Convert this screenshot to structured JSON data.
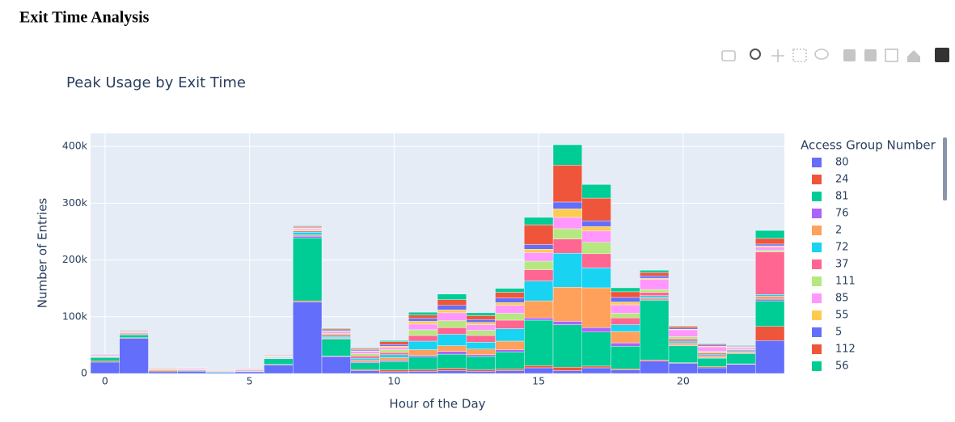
{
  "page": {
    "heading": "Exit Time Analysis"
  },
  "chart_data": {
    "type": "histogram",
    "title": "Peak Usage by Exit Time",
    "x_label": "Hour of the Day",
    "y_label": "Number of Entries",
    "legend_title": "Access Group Number",
    "barmode": "stack",
    "grid": true,
    "bins": [
      -0.5,
      0.5,
      1.5,
      2.5,
      3.5,
      4.5,
      5.5,
      6.5,
      7.5,
      8.5,
      9.5,
      10.5,
      11.5,
      12.5,
      13.5,
      14.5,
      15.5,
      16.5,
      17.5,
      18.5,
      19.5,
      20.5,
      21.5,
      22.5,
      23.5
    ],
    "xlim": [
      -0.5,
      23.5
    ],
    "xticks": [
      0,
      5,
      10,
      15,
      20
    ],
    "ylim": [
      0,
      423000
    ],
    "yticks": [
      0,
      {
        "value": 100000,
        "label": "100k"
      },
      {
        "value": 200000,
        "label": "200k"
      },
      {
        "value": 300000,
        "label": "300k"
      },
      {
        "value": 400000,
        "label": "400k"
      }
    ],
    "series": [
      {
        "name": "80",
        "color": "#636efa",
        "values": [
          20000,
          62000,
          3000,
          4000,
          2000,
          3000,
          15000,
          126000,
          30000,
          5000,
          3000,
          4000,
          5000,
          4000,
          5000,
          10000,
          5000,
          10000,
          6000,
          22000,
          18000,
          10000,
          16000,
          58000
        ]
      },
      {
        "name": "24",
        "color": "#ef553b",
        "values": [
          2000,
          1000,
          2000,
          1000,
          0,
          1000,
          1000,
          2000,
          1000,
          2000,
          3000,
          3000,
          4000,
          3000,
          3000,
          4000,
          6000,
          3000,
          2000,
          2000,
          1000,
          2000,
          1000,
          25000
        ]
      },
      {
        "name": "81",
        "color": "#00cc96",
        "values": [
          6000,
          5000,
          1000,
          1000,
          1000,
          1000,
          10000,
          111000,
          30000,
          12000,
          15000,
          22000,
          25000,
          23000,
          30000,
          80000,
          75000,
          60000,
          40000,
          105000,
          30000,
          15000,
          18000,
          45000
        ]
      },
      {
        "name": "76",
        "color": "#ab63fa",
        "values": [
          1000,
          1000,
          0,
          1000,
          0,
          1000,
          1000,
          3000,
          1000,
          2000,
          2000,
          3000,
          5000,
          3000,
          4000,
          4000,
          6000,
          8000,
          6000,
          2000,
          1000,
          1000,
          1000,
          3000
        ]
      },
      {
        "name": "2",
        "color": "#ffa15a",
        "values": [
          0,
          0,
          1000,
          1000,
          0,
          1000,
          0,
          2000,
          1000,
          3000,
          5000,
          10000,
          10000,
          10000,
          15000,
          30000,
          60000,
          70000,
          20000,
          3000,
          4000,
          3000,
          2000,
          5000
        ]
      },
      {
        "name": "72",
        "color": "#19d3f3",
        "values": [
          0,
          0,
          0,
          0,
          0,
          0,
          1000,
          5000,
          2000,
          3000,
          5000,
          15000,
          20000,
          12000,
          22000,
          35000,
          60000,
          35000,
          12000,
          3000,
          3000,
          2000,
          2000,
          3000
        ]
      },
      {
        "name": "37",
        "color": "#ff6692",
        "values": [
          1000,
          2000,
          0,
          1000,
          0,
          1000,
          1000,
          2000,
          3000,
          4000,
          4000,
          10000,
          12000,
          12000,
          15000,
          20000,
          25000,
          25000,
          12000,
          6000,
          4000,
          3000,
          2000,
          75000
        ]
      },
      {
        "name": "111",
        "color": "#b6e880",
        "values": [
          1000,
          1000,
          0,
          0,
          0,
          0,
          1000,
          2000,
          3000,
          4000,
          5000,
          10000,
          12000,
          9000,
          12000,
          15000,
          18000,
          20000,
          8000,
          5000,
          4000,
          3000,
          1000,
          3000
        ]
      },
      {
        "name": "85",
        "color": "#ff97ff",
        "values": [
          1000,
          1000,
          0,
          1000,
          0,
          1000,
          1000,
          2000,
          3000,
          4000,
          4000,
          10000,
          14000,
          10000,
          14000,
          15000,
          20000,
          20000,
          15000,
          18000,
          12000,
          8000,
          3000,
          6000
        ]
      },
      {
        "name": "55",
        "color": "#fecb52",
        "values": [
          0,
          0,
          0,
          0,
          0,
          0,
          0,
          1000,
          1000,
          1000,
          2000,
          5000,
          5000,
          4000,
          5000,
          6000,
          15000,
          8000,
          5000,
          2000,
          1000,
          1000,
          1000,
          2000
        ]
      },
      {
        "name": "5",
        "color": "#636efa",
        "values": [
          1000,
          1000,
          0,
          0,
          0,
          0,
          0,
          1000,
          2000,
          2000,
          3000,
          5000,
          8000,
          5000,
          8000,
          8000,
          12000,
          10000,
          8000,
          4000,
          2000,
          2000,
          1000,
          3000
        ]
      },
      {
        "name": "112",
        "color": "#ef553b",
        "values": [
          1000,
          1000,
          1000,
          0,
          1000,
          0,
          1000,
          2000,
          2000,
          2000,
          5000,
          6000,
          10000,
          7000,
          10000,
          35000,
          65000,
          40000,
          10000,
          6000,
          3000,
          2000,
          1000,
          10000
        ]
      },
      {
        "name": "56",
        "color": "#00cc96",
        "values": [
          0,
          1000,
          0,
          0,
          0,
          0,
          0,
          1000,
          1000,
          1000,
          2000,
          5000,
          10000,
          5000,
          7000,
          13000,
          36000,
          24000,
          7000,
          4000,
          1000,
          1000,
          1000,
          14000
        ]
      }
    ]
  }
}
